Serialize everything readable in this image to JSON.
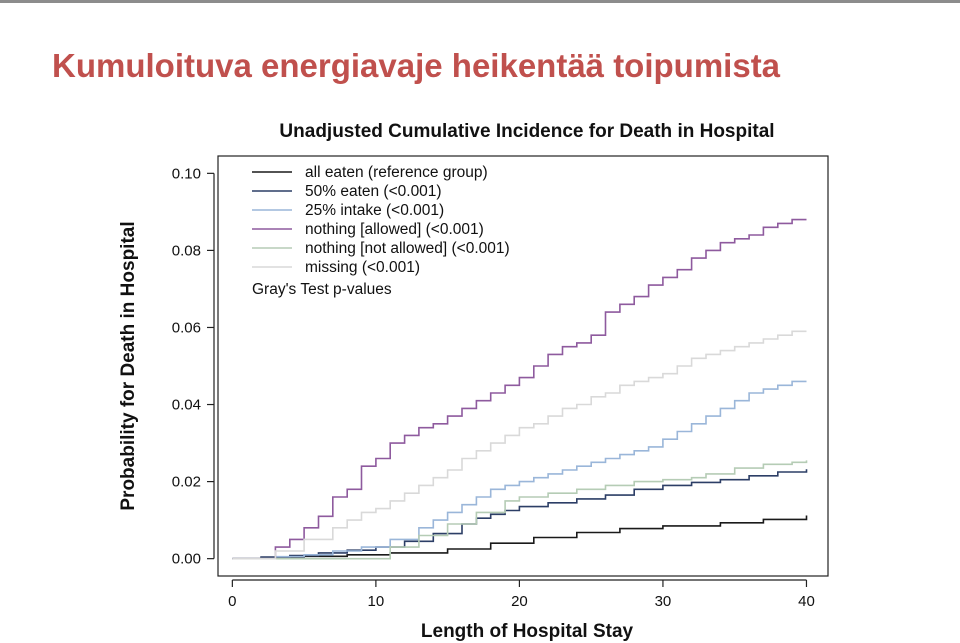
{
  "slide": {
    "title": "Kumuloituva energiavaje heikentää toipumista",
    "title_color": "#c0504d"
  },
  "chart_data": {
    "type": "line",
    "step": true,
    "title": "Unadjusted Cumulative Incidence for Death in Hospital",
    "xlabel": "Length of Hospital Stay",
    "ylabel": "Probability for Death in Hospital",
    "xlim": [
      -1,
      41.5
    ],
    "ylim": [
      -0.0045,
      0.1045
    ],
    "xticks": [
      0,
      10,
      20,
      30,
      40
    ],
    "xtick_labels": [
      "0",
      "10",
      "20",
      "30",
      "40"
    ],
    "yticks": [
      0.0,
      0.02,
      0.04,
      0.06,
      0.08,
      0.1
    ],
    "ytick_labels": [
      "0.00",
      "0.02",
      "0.04",
      "0.06",
      "0.08",
      "0.10"
    ],
    "grid": false,
    "legend": {
      "placement": "top-left",
      "note": "Gray's Test p-values"
    },
    "series": [
      {
        "name": "all eaten (reference group)",
        "color": "#1a1a1a",
        "x": [
          0,
          2,
          5,
          8,
          11,
          15,
          18,
          21,
          24,
          27,
          30,
          34,
          37,
          40
        ],
        "y": [
          0.0,
          0.0003,
          0.0006,
          0.001,
          0.0015,
          0.0025,
          0.004,
          0.0055,
          0.0068,
          0.0078,
          0.0085,
          0.0093,
          0.0102,
          0.0112
        ]
      },
      {
        "name": "50% eaten (<0.001)",
        "color": "#2c3e66",
        "x": [
          0,
          2,
          4,
          6,
          8,
          10,
          12,
          14,
          16,
          17,
          18,
          19,
          20,
          22,
          24,
          26,
          28,
          30,
          32,
          34,
          36,
          38,
          40
        ],
        "y": [
          0.0,
          0.0004,
          0.0008,
          0.0015,
          0.0022,
          0.003,
          0.0045,
          0.0065,
          0.009,
          0.0105,
          0.0115,
          0.0125,
          0.0135,
          0.0145,
          0.0155,
          0.0165,
          0.018,
          0.019,
          0.0198,
          0.0205,
          0.0215,
          0.0225,
          0.0232
        ]
      },
      {
        "name": "25% intake (<0.001)",
        "color": "#9ab6d9",
        "x": [
          0,
          3,
          5,
          7,
          9,
          11,
          13,
          14,
          15,
          16,
          17,
          18,
          19,
          20,
          21,
          22,
          23,
          24,
          25,
          26,
          27,
          28,
          29,
          30,
          31,
          32,
          33,
          34,
          35,
          36,
          37,
          38,
          39,
          40
        ],
        "y": [
          0.0,
          0.0005,
          0.001,
          0.002,
          0.003,
          0.005,
          0.008,
          0.01,
          0.012,
          0.014,
          0.016,
          0.018,
          0.019,
          0.02,
          0.021,
          0.022,
          0.023,
          0.024,
          0.025,
          0.026,
          0.027,
          0.028,
          0.029,
          0.031,
          0.033,
          0.035,
          0.037,
          0.039,
          0.041,
          0.043,
          0.044,
          0.045,
          0.046,
          0.046
        ]
      },
      {
        "name": "nothing [allowed] (<0.001)",
        "color": "#8e5a9e",
        "x": [
          0,
          3,
          4,
          5,
          6,
          7,
          8,
          9,
          10,
          11,
          12,
          13,
          14,
          15,
          16,
          17,
          18,
          19,
          20,
          21,
          22,
          23,
          24,
          25,
          26,
          27,
          28,
          29,
          30,
          31,
          32,
          33,
          34,
          35,
          36,
          37,
          38,
          39,
          40
        ],
        "y": [
          0.0,
          0.003,
          0.005,
          0.008,
          0.011,
          0.016,
          0.018,
          0.024,
          0.026,
          0.03,
          0.032,
          0.034,
          0.035,
          0.037,
          0.039,
          0.041,
          0.043,
          0.045,
          0.047,
          0.05,
          0.053,
          0.055,
          0.056,
          0.058,
          0.064,
          0.066,
          0.068,
          0.071,
          0.073,
          0.075,
          0.078,
          0.08,
          0.082,
          0.083,
          0.084,
          0.086,
          0.087,
          0.088,
          0.088
        ]
      },
      {
        "name": "nothing [not allowed] (<0.001)",
        "color": "#b5ccb5",
        "x": [
          0,
          5,
          10,
          11,
          13,
          15,
          17,
          19,
          20,
          22,
          24,
          26,
          28,
          30,
          32,
          33,
          35,
          37,
          39,
          40
        ],
        "y": [
          0.0,
          0.0,
          0.0,
          0.003,
          0.006,
          0.009,
          0.012,
          0.015,
          0.016,
          0.017,
          0.018,
          0.019,
          0.02,
          0.0205,
          0.021,
          0.022,
          0.0235,
          0.0245,
          0.025,
          0.0255
        ]
      },
      {
        "name": "missing (<0.001)",
        "color": "#d9d9d9",
        "x": [
          0,
          3,
          5,
          7,
          8,
          9,
          10,
          11,
          12,
          13,
          14,
          15,
          16,
          17,
          18,
          19,
          20,
          21,
          22,
          23,
          24,
          25,
          26,
          27,
          28,
          29,
          30,
          31,
          32,
          33,
          34,
          35,
          36,
          37,
          38,
          39,
          40
        ],
        "y": [
          0.0,
          0.002,
          0.005,
          0.008,
          0.01,
          0.012,
          0.013,
          0.015,
          0.017,
          0.019,
          0.021,
          0.023,
          0.026,
          0.028,
          0.03,
          0.032,
          0.034,
          0.035,
          0.037,
          0.039,
          0.04,
          0.042,
          0.043,
          0.045,
          0.046,
          0.047,
          0.048,
          0.05,
          0.052,
          0.053,
          0.054,
          0.055,
          0.056,
          0.057,
          0.058,
          0.059,
          0.059
        ]
      }
    ]
  }
}
